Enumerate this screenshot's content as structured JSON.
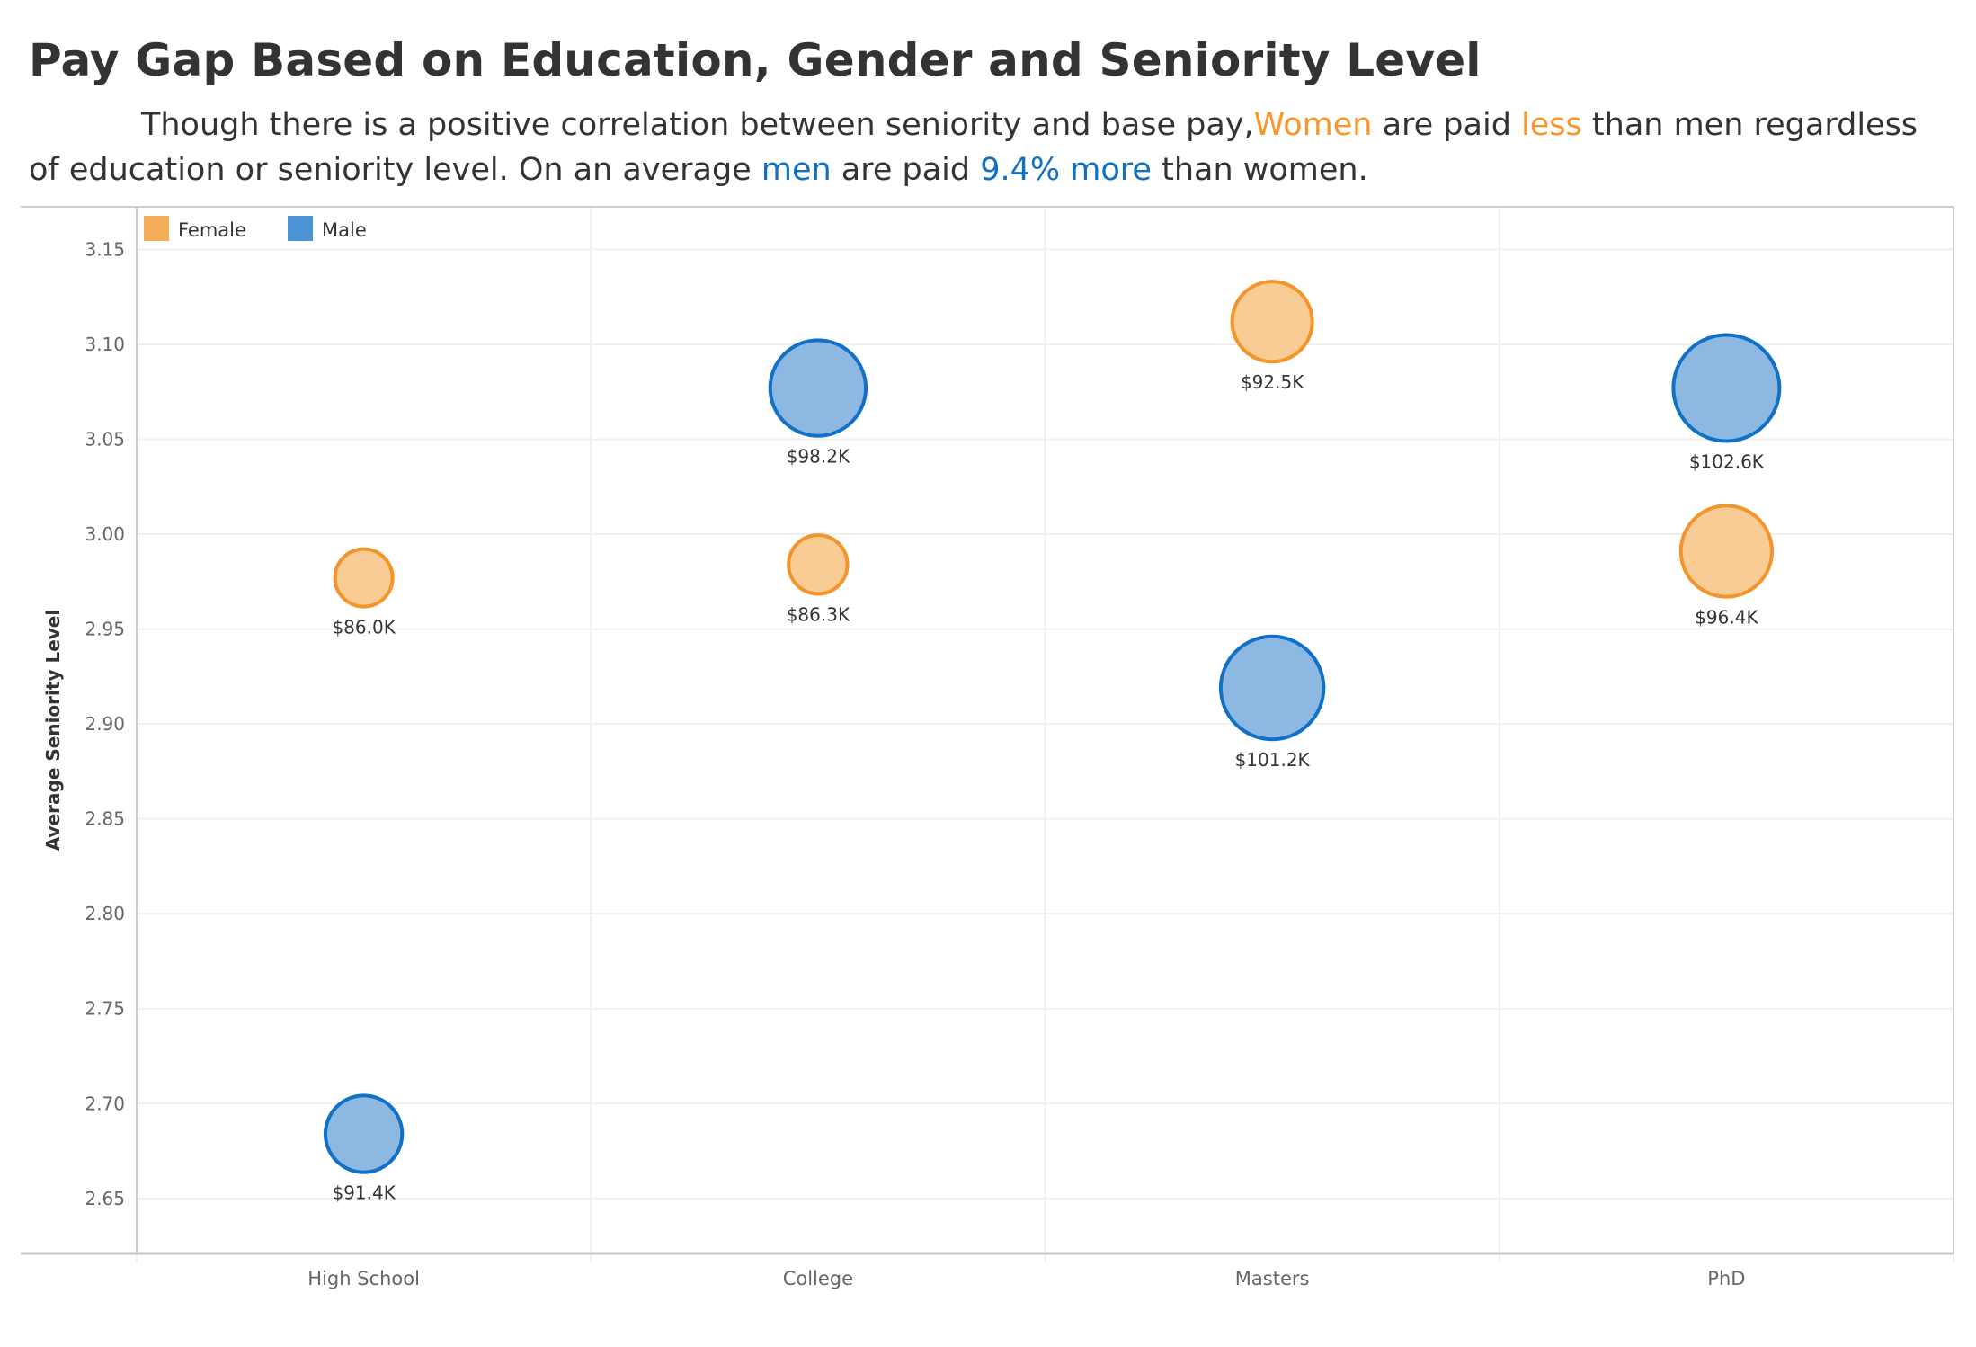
{
  "header": {
    "title": "Pay Gap Based on Education, Gender and Seniority Level",
    "subtitle_parts": [
      {
        "text": "Though there is a positive correlation between seniority and base pay,",
        "style": "normal"
      },
      {
        "text": "Women",
        "style": "orange"
      },
      {
        "text": " are paid ",
        "style": "normal"
      },
      {
        "text": "less",
        "style": "orange"
      },
      {
        "text": " than men regardless of education or seniority level. On an average ",
        "style": "normal"
      },
      {
        "text": "men",
        "style": "blue"
      },
      {
        "text": " are paid ",
        "style": "normal"
      },
      {
        "text": "9.4% more",
        "style": "blue"
      },
      {
        "text": " than women.",
        "style": "normal"
      }
    ]
  },
  "colors": {
    "female_fill": "#F9C990",
    "female_stroke": "#F3952A",
    "female_legend": "#F5AD58",
    "male_fill": "#86B4E0",
    "male_stroke": "#1170C8",
    "male_legend": "#4C94D4",
    "highlight_orange": "#F7962A",
    "highlight_blue": "#1170C0"
  },
  "chart_data": {
    "type": "scatter",
    "subtype": "bubble",
    "title": "Pay Gap Based on Education, Gender and Seniority Level",
    "xlabel": "",
    "ylabel": "Average Seniority Level",
    "categories": [
      "High School",
      "College",
      "Masters",
      "PhD"
    ],
    "yticks": [
      2.65,
      2.7,
      2.75,
      2.8,
      2.85,
      2.9,
      2.95,
      3.0,
      3.05,
      3.1,
      3.15
    ],
    "ytick_labels": [
      "2.65",
      "2.70",
      "2.75",
      "2.80",
      "2.85",
      "2.90",
      "2.95",
      "3.00",
      "3.05",
      "3.10",
      "3.15"
    ],
    "ylim": [
      2.621,
      3.172
    ],
    "grid": true,
    "legend": {
      "placement": "top-left",
      "entries": [
        "Female",
        "Male"
      ]
    },
    "size_encoding": "Average Base Pay",
    "series": [
      {
        "name": "Female",
        "seniority": [
          2.977,
          2.984,
          3.112,
          2.991
        ],
        "base_pay_k": [
          86.0,
          86.3,
          92.5,
          96.4
        ],
        "labels": [
          "$86.0K",
          "$86.3K",
          "$92.5K",
          "$96.4K"
        ]
      },
      {
        "name": "Male",
        "seniority": [
          2.684,
          3.077,
          2.919,
          3.077
        ],
        "base_pay_k": [
          91.4,
          98.2,
          101.2,
          102.6
        ],
        "labels": [
          "$91.4K",
          "$98.2K",
          "$101.2K",
          "$102.6K"
        ]
      }
    ]
  }
}
